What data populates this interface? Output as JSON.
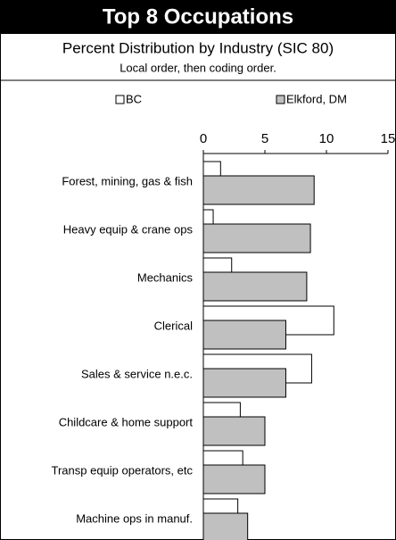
{
  "chart_data": {
    "type": "hbar",
    "title": "Top 8 Occupations",
    "subtitle": "Percent Distribution by Industry (SIC 80)",
    "note": "Local order, then coding order.",
    "categories": [
      "Forest, mining, gas & fish",
      "Heavy equip & crane ops",
      "Mechanics",
      "Clerical",
      "Sales & service  n.e.c.",
      "Childcare & home support",
      "Transp equip operators, etc",
      "Machine ops in manuf."
    ],
    "series": [
      {
        "name": "BC",
        "color": "#ffffff",
        "values": [
          1.4,
          0.8,
          2.3,
          10.6,
          8.8,
          3.0,
          3.2,
          2.8
        ]
      },
      {
        "name": "Elkford, DM",
        "color": "#c0c0c0",
        "values": [
          9.0,
          8.7,
          8.4,
          6.7,
          6.7,
          5.0,
          5.0,
          3.6
        ]
      }
    ],
    "xlim": [
      0,
      15
    ],
    "xticks": [
      0,
      5,
      10,
      15
    ],
    "legend": "top"
  }
}
